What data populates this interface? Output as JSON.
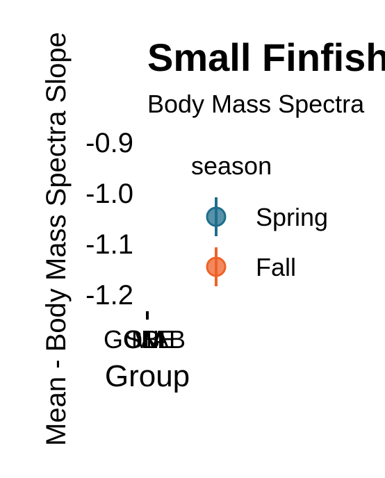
{
  "chart_data": {
    "type": "scatter",
    "title": "Small Finfish",
    "subtitle": "Body Mass Spectra",
    "ylabel": "Mean - Body Mass Spectra Slope",
    "xlabel": "Group",
    "y_ticks": [
      "-0.9",
      "-1.0",
      "-1.1",
      "-1.2"
    ],
    "ylim": [
      -1.25,
      -0.88
    ],
    "x_tick_labels": [
      "GOM",
      "GB",
      "SNE",
      "MAB"
    ],
    "legend": {
      "title": "season",
      "placement": "right",
      "entries": [
        {
          "label": "Spring",
          "color": "#1f6e8c"
        },
        {
          "label": "Fall",
          "color": "#ee6228"
        }
      ]
    },
    "series": [
      {
        "name": "Spring",
        "color": "#1f6e8c",
        "values": []
      },
      {
        "name": "Fall",
        "color": "#ee6228",
        "values": []
      }
    ]
  }
}
